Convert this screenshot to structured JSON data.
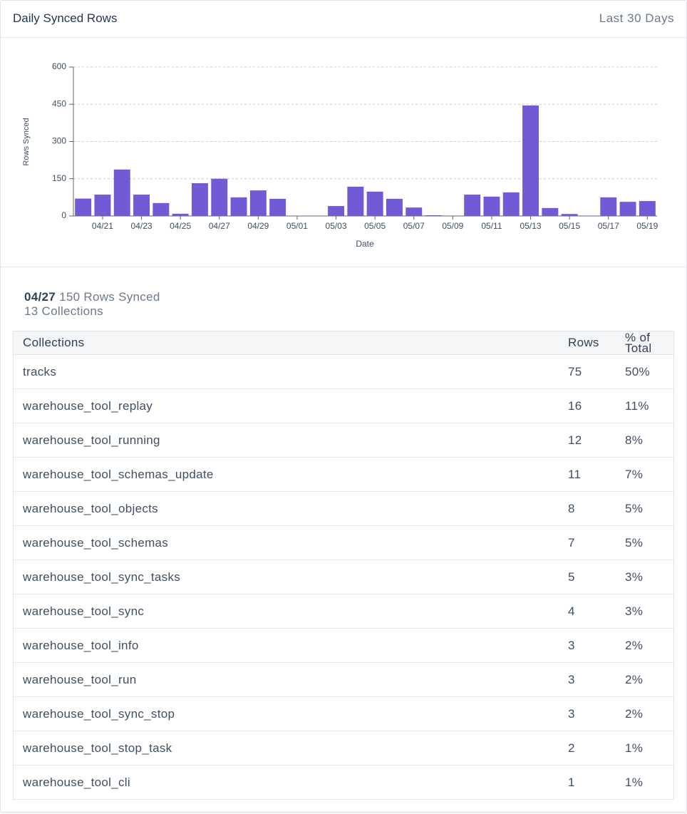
{
  "header": {
    "title": "Daily Synced Rows",
    "range": "Last 30 Days"
  },
  "chart_data": {
    "type": "bar",
    "x_label": "Date",
    "y_label": "Rows Synced",
    "categories": [
      null,
      "04/21",
      null,
      "04/23",
      null,
      "04/25",
      null,
      "04/27",
      null,
      "04/29",
      null,
      "05/01",
      null,
      "05/03",
      null,
      "05/05",
      null,
      "05/07",
      null,
      "05/09",
      null,
      "05/11",
      null,
      "05/13",
      null,
      "05/15",
      null,
      "05/17",
      null,
      "05/19"
    ],
    "values": [
      70,
      86,
      187,
      86,
      52,
      9,
      132,
      150,
      75,
      103,
      69,
      1,
      0,
      40,
      118,
      98,
      69,
      34,
      3,
      0,
      86,
      78,
      95,
      445,
      32,
      8,
      1,
      75,
      57,
      60
    ],
    "color": "#7259d6",
    "ylim": [
      0,
      600
    ],
    "yticks": [
      0,
      150,
      300,
      450,
      600
    ],
    "grid": true
  },
  "summary": {
    "date": "04/27",
    "rows": "150 Rows Synced",
    "collections": "13 Collections"
  },
  "table": {
    "columns": [
      "Collections",
      "Rows",
      "% of Total"
    ],
    "rows": [
      [
        "tracks",
        "75",
        "50%"
      ],
      [
        "warehouse_tool_replay",
        "16",
        "11%"
      ],
      [
        "warehouse_tool_running",
        "12",
        "8%"
      ],
      [
        "warehouse_tool_schemas_update",
        "11",
        "7%"
      ],
      [
        "warehouse_tool_objects",
        "8",
        "5%"
      ],
      [
        "warehouse_tool_schemas",
        "7",
        "5%"
      ],
      [
        "warehouse_tool_sync_tasks",
        "5",
        "3%"
      ],
      [
        "warehouse_tool_sync",
        "4",
        "3%"
      ],
      [
        "warehouse_tool_info",
        "3",
        "2%"
      ],
      [
        "warehouse_tool_run",
        "3",
        "2%"
      ],
      [
        "warehouse_tool_sync_stop",
        "3",
        "2%"
      ],
      [
        "warehouse_tool_stop_task",
        "2",
        "1%"
      ],
      [
        "warehouse_tool_cli",
        "1",
        "1%"
      ]
    ]
  }
}
